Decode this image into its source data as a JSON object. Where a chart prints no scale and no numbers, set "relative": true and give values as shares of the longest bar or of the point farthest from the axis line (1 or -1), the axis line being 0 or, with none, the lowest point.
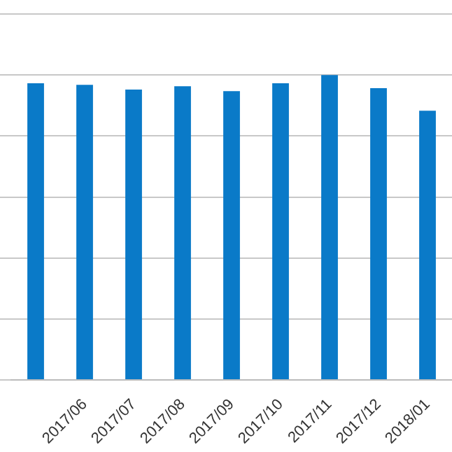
{
  "chart_data": {
    "type": "bar",
    "relative": true,
    "categories": [
      null,
      "2017/06",
      "2017/07",
      "2017/08",
      "2017/09",
      "2017/10",
      "2017/11",
      "2017/12",
      "2018/01"
    ],
    "values": [
      0.973,
      0.968,
      0.952,
      0.963,
      0.947,
      0.973,
      1,
      0.957,
      0.883
    ],
    "color": "#0a7ac8",
    "grid": "y",
    "legend": false
  }
}
